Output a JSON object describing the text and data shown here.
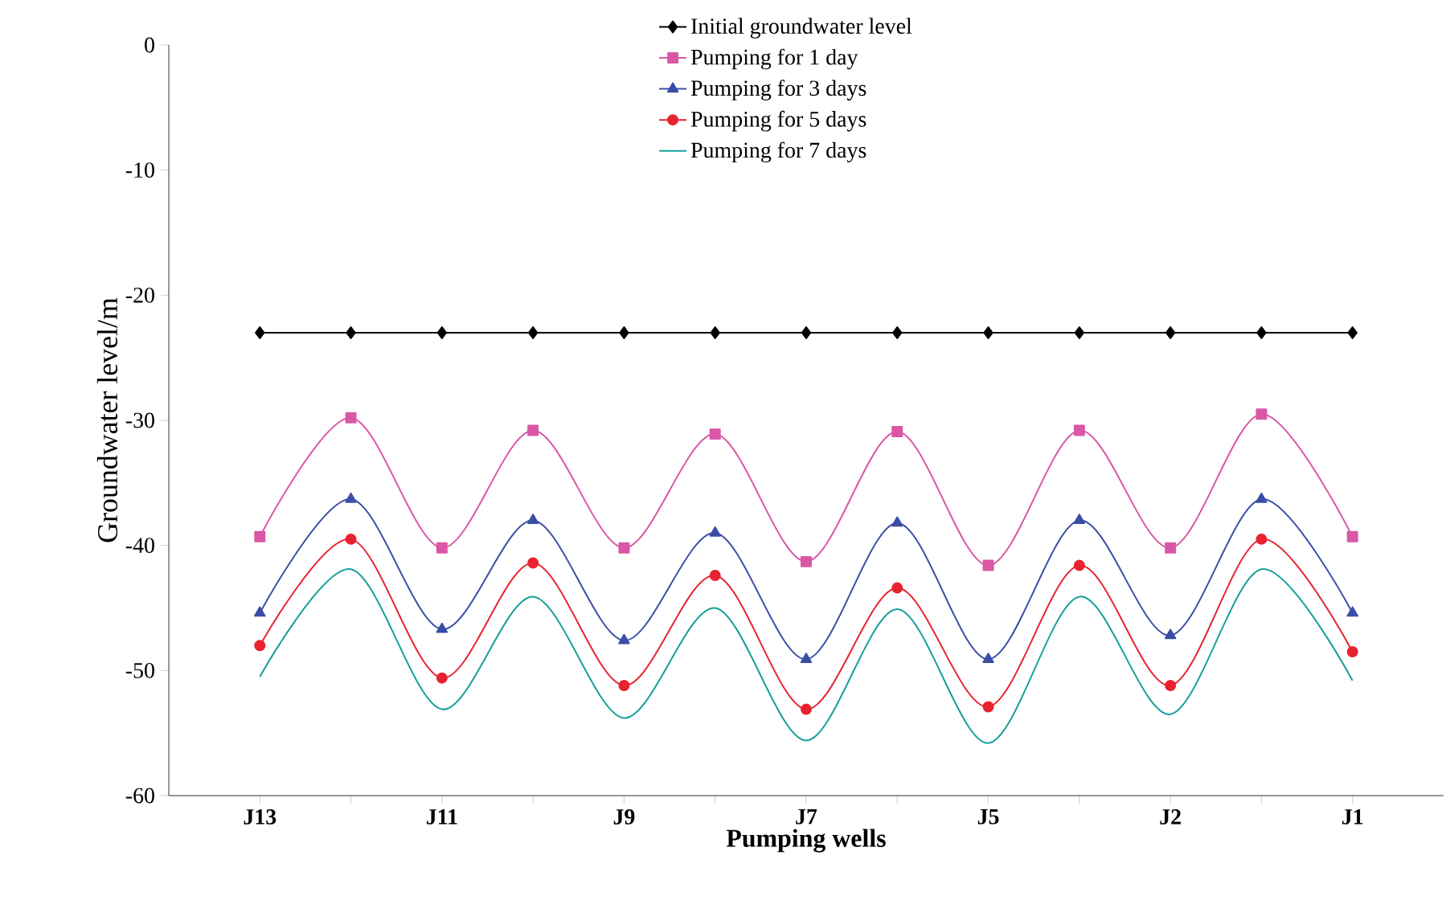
{
  "chart_data": {
    "type": "line",
    "xlabel": "Pumping wells",
    "ylabel": "Groundwater level/m",
    "categories": [
      "J13",
      null,
      "J11",
      null,
      "J9",
      null,
      "J7",
      null,
      "J5",
      null,
      "J2",
      null,
      "J1"
    ],
    "ylim": [
      -60,
      0
    ],
    "yticks": [
      -60,
      -50,
      -40,
      -30,
      -20,
      -10,
      0
    ],
    "legend": "top",
    "grid": false,
    "series": [
      {
        "name": "Initial groundwater level",
        "color": "#000000",
        "marker": "diamond",
        "values": [
          -23.0,
          -23.0,
          -23.0,
          -23.0,
          -23.0,
          -23.0,
          -23.0,
          -23.0,
          -23.0,
          -23.0,
          -23.0,
          -23.0,
          -23.0
        ]
      },
      {
        "name": "Pumping for 1 day",
        "color": "#d957a6",
        "marker": "square",
        "values": [
          -39.3,
          -29.8,
          -40.2,
          -30.8,
          -40.2,
          -31.1,
          -41.3,
          -30.9,
          -41.6,
          -30.8,
          -40.2,
          -29.5,
          -39.3
        ]
      },
      {
        "name": "Pumping for 3 days",
        "color": "#3b4ea6",
        "marker": "triangle",
        "values": [
          -45.4,
          -36.3,
          -46.7,
          -38.0,
          -47.6,
          -39.0,
          -49.1,
          -38.2,
          -49.1,
          -38.0,
          -47.2,
          -36.3,
          -45.4
        ]
      },
      {
        "name": "Pumping for 5 days",
        "color": "#e8232f",
        "marker": "circle",
        "values": [
          -48.0,
          -39.5,
          -50.6,
          -41.4,
          -51.2,
          -42.4,
          -53.1,
          -43.4,
          -52.9,
          -41.6,
          -51.2,
          -39.5,
          -48.5
        ]
      },
      {
        "name": "Pumping for 7 days",
        "color": "#14a09a",
        "marker": "none",
        "values": [
          -50.5,
          -41.9,
          -53.1,
          -44.1,
          -53.8,
          -45.0,
          -55.6,
          -45.1,
          -55.8,
          -44.1,
          -53.5,
          -41.9,
          -50.8
        ]
      }
    ]
  }
}
